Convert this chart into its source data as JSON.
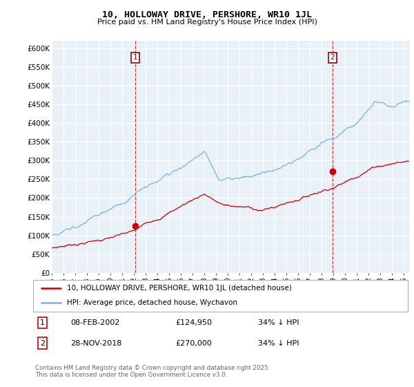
{
  "title": "10, HOLLOWAY DRIVE, PERSHORE, WR10 1JL",
  "subtitle": "Price paid vs. HM Land Registry's House Price Index (HPI)",
  "ylabel_ticks": [
    "£0",
    "£50K",
    "£100K",
    "£150K",
    "£200K",
    "£250K",
    "£300K",
    "£350K",
    "£400K",
    "£450K",
    "£500K",
    "£550K",
    "£600K"
  ],
  "ylim": [
    0,
    620000
  ],
  "xlim_start": 1995.0,
  "xlim_end": 2025.5,
  "hpi_color": "#7ab3d8",
  "price_color": "#cc0000",
  "marker1_x": 2002.1,
  "marker1_y": 124950,
  "marker2_x": 2018.92,
  "marker2_y": 270000,
  "legend_line1": "10, HOLLOWAY DRIVE, PERSHORE, WR10 1JL (detached house)",
  "legend_line2": "HPI: Average price, detached house, Wychavon",
  "annotation1_label": "1",
  "annotation1_date": "08-FEB-2002",
  "annotation1_price": "£124,950",
  "annotation1_hpi": "34% ↓ HPI",
  "annotation2_label": "2",
  "annotation2_date": "28-NOV-2018",
  "annotation2_price": "£270,000",
  "annotation2_hpi": "34% ↓ HPI",
  "footer": "Contains HM Land Registry data © Crown copyright and database right 2025.\nThis data is licensed under the Open Government Licence v3.0.",
  "background_color": "#e8f0f8",
  "grid_color": "#ffffff"
}
